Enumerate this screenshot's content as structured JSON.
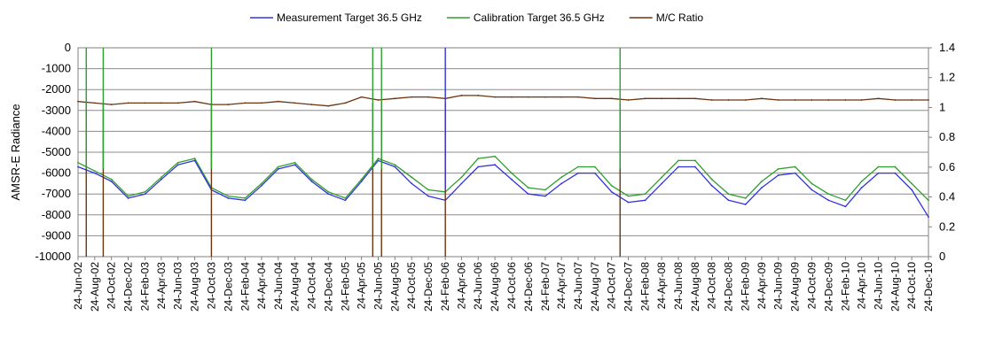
{
  "chart_data": {
    "type": "line",
    "title": "",
    "ylabel": "AMSR-E Radiance",
    "y2label": "",
    "ylim": [
      -10000,
      0
    ],
    "y2lim": [
      0,
      1.4
    ],
    "yticks": [
      "0",
      "-1000",
      "-2000",
      "-3000",
      "-4000",
      "-5000",
      "-6000",
      "-7000",
      "-8000",
      "-9000",
      "-10000"
    ],
    "y2ticks": [
      "1.4",
      "1.2",
      "1",
      "0.8",
      "0.6",
      "0.4",
      "0.2",
      "0"
    ],
    "x_range": [
      "2002-06-24",
      "2010-12-24"
    ],
    "xticks": [
      "24-Jun-02",
      "24-Aug-02",
      "24-Oct-02",
      "24-Dec-02",
      "24-Feb-03",
      "24-Apr-03",
      "24-Jun-03",
      "24-Aug-03",
      "24-Oct-03",
      "24-Dec-03",
      "24-Feb-04",
      "24-Apr-04",
      "24-Jun-04",
      "24-Aug-04",
      "24-Oct-04",
      "24-Dec-04",
      "24-Feb-05",
      "24-Apr-05",
      "24-Jun-05",
      "24-Aug-05",
      "24-Oct-05",
      "24-Dec-05",
      "24-Feb-06",
      "24-Apr-06",
      "24-Jun-06",
      "24-Aug-06",
      "24-Oct-06",
      "24-Dec-06",
      "24-Feb-07",
      "24-Apr-07",
      "24-Jun-07",
      "24-Aug-07",
      "24-Oct-07",
      "24-Dec-07",
      "24-Feb-08",
      "24-Apr-08",
      "24-Jun-08",
      "24-Aug-08",
      "24-Oct-08",
      "24-Dec-08",
      "24-Feb-09",
      "24-Apr-09",
      "24-Jun-09",
      "24-Aug-09",
      "24-Oct-09",
      "24-Dec-09",
      "24-Feb-10",
      "24-Apr-10",
      "24-Jun-10",
      "24-Aug-10",
      "24-Oct-10",
      "24-Dec-10"
    ],
    "legend_position": "top",
    "grid": true,
    "series": [
      {
        "name": "Measurement Target 36.5 GHz",
        "axis": "left",
        "color": "#3333dd",
        "x": [
          "2002-06-24",
          "2002-08-24",
          "2002-10-24",
          "2002-12-24",
          "2003-02-24",
          "2003-04-24",
          "2003-06-24",
          "2003-08-24",
          "2003-10-24",
          "2003-12-24",
          "2004-02-24",
          "2004-04-24",
          "2004-06-24",
          "2004-08-24",
          "2004-10-24",
          "2004-12-24",
          "2005-02-24",
          "2005-04-24",
          "2005-06-24",
          "2005-08-24",
          "2005-10-24",
          "2005-12-24",
          "2006-02-24",
          "2006-04-24",
          "2006-06-24",
          "2006-08-24",
          "2006-10-24",
          "2006-12-24",
          "2007-02-24",
          "2007-04-24",
          "2007-06-24",
          "2007-08-24",
          "2007-10-24",
          "2007-12-24",
          "2008-02-24",
          "2008-04-24",
          "2008-06-24",
          "2008-08-24",
          "2008-10-24",
          "2008-12-24",
          "2009-02-24",
          "2009-04-24",
          "2009-06-24",
          "2009-08-24",
          "2009-10-24",
          "2009-12-24",
          "2010-02-24",
          "2010-04-24",
          "2010-06-24",
          "2010-08-24",
          "2010-10-24",
          "2010-12-24"
        ],
        "values": [
          -5700,
          -6000,
          -6400,
          -7200,
          -7000,
          -6300,
          -5600,
          -5400,
          -6800,
          -7200,
          -7300,
          -6600,
          -5800,
          -5600,
          -6400,
          -7000,
          -7300,
          -6400,
          -5400,
          -5700,
          -6500,
          -7100,
          -7300,
          -6500,
          -5700,
          -5600,
          -6300,
          -7000,
          -7100,
          -6500,
          -6000,
          -6000,
          -6900,
          -7400,
          -7300,
          -6500,
          -5700,
          -5700,
          -6600,
          -7300,
          -7500,
          -6700,
          -6100,
          -6000,
          -6800,
          -7300,
          -7600,
          -6700,
          -6000,
          -6000,
          -6800,
          -8100
        ]
      },
      {
        "name": "Calibration Target 36.5 GHz",
        "axis": "left",
        "color": "#2e9e2e",
        "x": [
          "2002-06-24",
          "2002-08-24",
          "2002-10-24",
          "2002-12-24",
          "2003-02-24",
          "2003-04-24",
          "2003-06-24",
          "2003-08-24",
          "2003-10-24",
          "2003-12-24",
          "2004-02-24",
          "2004-04-24",
          "2004-06-24",
          "2004-08-24",
          "2004-10-24",
          "2004-12-24",
          "2005-02-24",
          "2005-04-24",
          "2005-06-24",
          "2005-08-24",
          "2005-10-24",
          "2005-12-24",
          "2006-02-24",
          "2006-04-24",
          "2006-06-24",
          "2006-08-24",
          "2006-10-24",
          "2006-12-24",
          "2007-02-24",
          "2007-04-24",
          "2007-06-24",
          "2007-08-24",
          "2007-10-24",
          "2007-12-24",
          "2008-02-24",
          "2008-04-24",
          "2008-06-24",
          "2008-08-24",
          "2008-10-24",
          "2008-12-24",
          "2009-02-24",
          "2009-04-24",
          "2009-06-24",
          "2009-08-24",
          "2009-10-24",
          "2009-12-24",
          "2010-02-24",
          "2010-04-24",
          "2010-06-24",
          "2010-08-24",
          "2010-10-24",
          "2010-12-24"
        ],
        "values": [
          -5500,
          -5900,
          -6300,
          -7100,
          -6900,
          -6200,
          -5500,
          -5300,
          -6700,
          -7100,
          -7200,
          -6500,
          -5700,
          -5500,
          -6300,
          -6900,
          -7200,
          -6300,
          -5300,
          -5600,
          -6200,
          -6800,
          -6900,
          -6200,
          -5300,
          -5200,
          -6000,
          -6700,
          -6800,
          -6200,
          -5700,
          -5700,
          -6600,
          -7100,
          -7000,
          -6200,
          -5400,
          -5400,
          -6300,
          -7000,
          -7200,
          -6400,
          -5800,
          -5700,
          -6500,
          -7000,
          -7300,
          -6400,
          -5700,
          -5700,
          -6500,
          -7300
        ]
      },
      {
        "name": "M/C Ratio",
        "axis": "right",
        "color": "#6b3410",
        "x": [
          "2002-06-24",
          "2002-08-24",
          "2002-10-24",
          "2002-12-24",
          "2003-02-24",
          "2003-04-24",
          "2003-06-24",
          "2003-08-24",
          "2003-10-24",
          "2003-12-24",
          "2004-02-24",
          "2004-04-24",
          "2004-06-24",
          "2004-08-24",
          "2004-10-24",
          "2004-12-24",
          "2005-02-24",
          "2005-04-24",
          "2005-06-24",
          "2005-08-24",
          "2005-10-24",
          "2005-12-24",
          "2006-02-24",
          "2006-04-24",
          "2006-06-24",
          "2006-08-24",
          "2006-10-24",
          "2006-12-24",
          "2007-02-24",
          "2007-04-24",
          "2007-06-24",
          "2007-08-24",
          "2007-10-24",
          "2007-12-24",
          "2008-02-24",
          "2008-04-24",
          "2008-06-24",
          "2008-08-24",
          "2008-10-24",
          "2008-12-24",
          "2009-02-24",
          "2009-04-24",
          "2009-06-24",
          "2009-08-24",
          "2009-10-24",
          "2009-12-24",
          "2010-02-24",
          "2010-04-24",
          "2010-06-24",
          "2010-08-24",
          "2010-10-24",
          "2010-12-24"
        ],
        "values": [
          1.04,
          1.03,
          1.02,
          1.03,
          1.03,
          1.03,
          1.03,
          1.04,
          1.02,
          1.02,
          1.03,
          1.03,
          1.04,
          1.03,
          1.02,
          1.01,
          1.03,
          1.07,
          1.05,
          1.06,
          1.07,
          1.07,
          1.06,
          1.08,
          1.08,
          1.07,
          1.07,
          1.07,
          1.07,
          1.07,
          1.07,
          1.06,
          1.06,
          1.05,
          1.06,
          1.06,
          1.06,
          1.06,
          1.05,
          1.05,
          1.05,
          1.06,
          1.05,
          1.05,
          1.05,
          1.05,
          1.05,
          1.05,
          1.06,
          1.05,
          1.05,
          1.05
        ]
      }
    ],
    "dropouts": [
      {
        "series": "M/C Ratio",
        "dates": [
          "2002-07-24",
          "2002-09-24",
          "2003-10-24",
          "2005-06-04",
          "2005-07-06",
          "2006-02-24",
          "2007-11-24"
        ]
      },
      {
        "series": "Calibration Target 36.5 GHz",
        "dates": [
          "2002-07-24",
          "2002-09-24",
          "2003-10-24",
          "2005-06-04",
          "2005-07-06",
          "2007-11-24"
        ]
      },
      {
        "series": "Measurement Target 36.5 GHz",
        "dates": [
          "2006-02-24"
        ]
      }
    ]
  }
}
